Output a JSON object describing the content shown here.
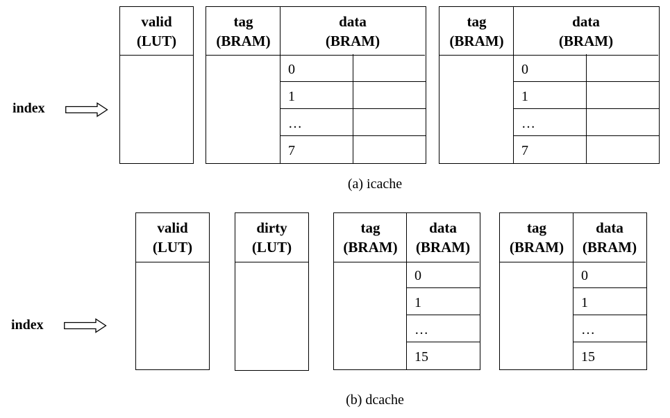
{
  "icache": {
    "caption": "(a) icache",
    "index_label": "index",
    "valid": {
      "line1": "valid",
      "line2": "(LUT)"
    },
    "ways": [
      {
        "tag": {
          "line1": "tag",
          "line2": "(BRAM)"
        },
        "data": {
          "line1": "data",
          "line2": "(BRAM)"
        },
        "rows": [
          "0",
          "1",
          "…",
          "7"
        ]
      },
      {
        "tag": {
          "line1": "tag",
          "line2": "(BRAM)"
        },
        "data": {
          "line1": "data",
          "line2": "(BRAM)"
        },
        "rows": [
          "0",
          "1",
          "…",
          "7"
        ]
      }
    ]
  },
  "dcache": {
    "caption": "(b) dcache",
    "index_label": "index",
    "valid": {
      "line1": "valid",
      "line2": "(LUT)"
    },
    "dirty": {
      "line1": "dirty",
      "line2": "(LUT)"
    },
    "ways": [
      {
        "tag": {
          "line1": "tag",
          "line2": "(BRAM)"
        },
        "data": {
          "line1": "data",
          "line2": "(BRAM)"
        },
        "rows": [
          "0",
          "1",
          "…",
          "15"
        ]
      },
      {
        "tag": {
          "line1": "tag",
          "line2": "(BRAM)"
        },
        "data": {
          "line1": "data",
          "line2": "(BRAM)"
        },
        "rows": [
          "0",
          "1",
          "…",
          "15"
        ]
      }
    ]
  }
}
